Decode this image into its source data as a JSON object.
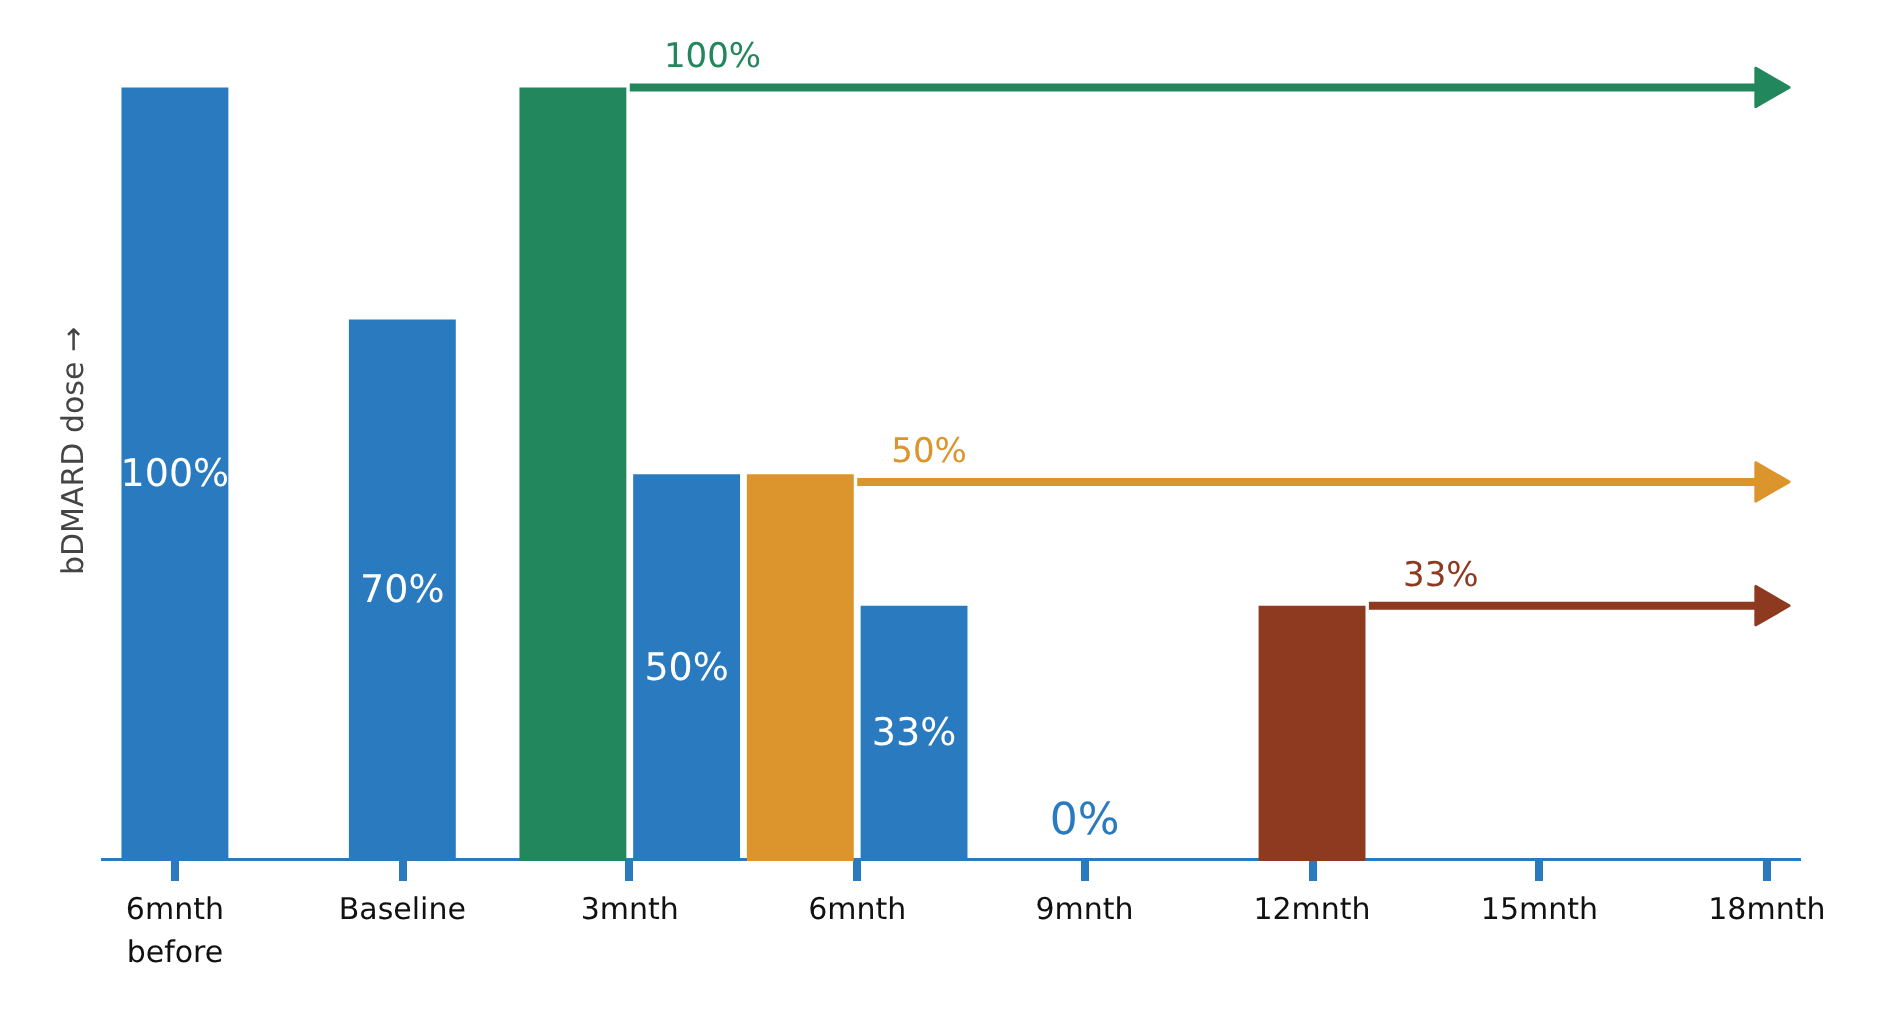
{
  "chart_data": {
    "type": "bar",
    "ylabel": "bDMARD dose →",
    "tick_labels": "x",
    "ref_lines": [
      {
        "axis": "y",
        "value": 0,
        "color": "#2a7abf"
      }
    ],
    "grid": false,
    "categories": [
      "6mnth\nbefore",
      null,
      null,
      null,
      "Baseline",
      null,
      null,
      null,
      "3mnth",
      null,
      null,
      null,
      "6mnth",
      null,
      null,
      null,
      "9mnth",
      null,
      null,
      null,
      "12mnth",
      null,
      null,
      null,
      "15mnth",
      null,
      null,
      null,
      "18mnth"
    ],
    "series": [
      {
        "color": "#2a7abf",
        "values": [
          100,
          null,
          null,
          null,
          70,
          null,
          null,
          null,
          null,
          50,
          null,
          null,
          null,
          33,
          null,
          null,
          0,
          null,
          null,
          null,
          null,
          null,
          null,
          null,
          null,
          null,
          null,
          null,
          null
        ],
        "value_labels": [
          "100%",
          null,
          null,
          null,
          "70%",
          null,
          null,
          null,
          null,
          "50%",
          null,
          null,
          null,
          "33%",
          null,
          null,
          "0%",
          null,
          null,
          null,
          null,
          null,
          null,
          null,
          null,
          null,
          null,
          null,
          null
        ]
      },
      {
        "color": "#23875d",
        "values": [
          null,
          null,
          null,
          null,
          null,
          null,
          null,
          100,
          null,
          null,
          null,
          null,
          null,
          null,
          null,
          null,
          null,
          null,
          null,
          null,
          null,
          null,
          null,
          null,
          null,
          null,
          null,
          null,
          null
        ]
      },
      {
        "color": "#dc942c",
        "values": [
          null,
          null,
          null,
          null,
          null,
          null,
          null,
          null,
          null,
          null,
          null,
          50,
          null,
          null,
          null,
          null,
          null,
          null,
          null,
          null,
          null,
          null,
          null,
          null,
          null,
          null,
          null,
          null,
          null
        ]
      },
      {
        "color": "#8d3a20",
        "values": [
          null,
          null,
          null,
          null,
          null,
          null,
          null,
          null,
          null,
          null,
          null,
          null,
          null,
          null,
          null,
          null,
          null,
          null,
          null,
          null,
          33,
          null,
          null,
          null,
          null,
          null,
          null,
          null,
          null
        ]
      },
      {
        "type": "line",
        "color": "#23875d",
        "values": [
          null,
          null,
          null,
          null,
          null,
          null,
          null,
          null,
          100,
          100,
          100,
          100,
          100,
          100,
          100,
          100,
          100,
          100,
          100,
          100,
          100,
          100,
          100,
          100,
          100,
          100,
          100,
          100,
          100
        ]
      },
      {
        "type": "line",
        "color": "#dc942c",
        "values": [
          null,
          null,
          null,
          null,
          null,
          null,
          null,
          null,
          null,
          null,
          null,
          null,
          49,
          49,
          49,
          49,
          49,
          49,
          49,
          49,
          49,
          49,
          49,
          49,
          49,
          49,
          49,
          49,
          49
        ]
      },
      {
        "type": "line",
        "color": "#8d3a20",
        "values": [
          null,
          null,
          null,
          null,
          null,
          null,
          null,
          null,
          null,
          null,
          null,
          null,
          null,
          null,
          null,
          null,
          null,
          null,
          null,
          null,
          null,
          33,
          33,
          33,
          33,
          33,
          33,
          33,
          33
        ]
      }
    ],
    "annotations": [
      "100%",
      "50%",
      "33%"
    ]
  }
}
